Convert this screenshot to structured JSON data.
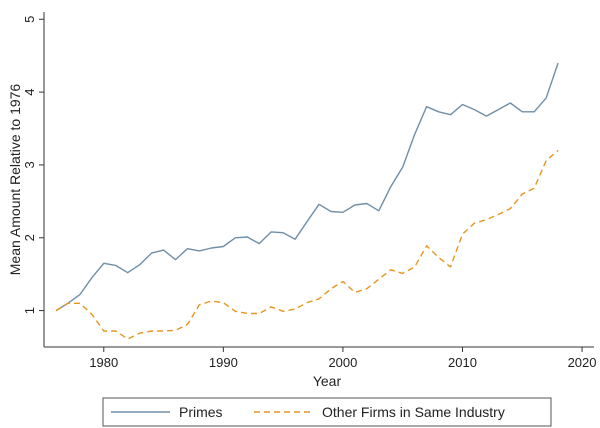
{
  "chart_data": {
    "type": "line",
    "xlabel": "Year",
    "ylabel": "Mean Amount Relative to 1976",
    "xlim": [
      1975,
      2021
    ],
    "ylim": [
      0.5,
      5.1
    ],
    "xticks": [
      1980,
      1990,
      2000,
      2010,
      2020
    ],
    "yticks": [
      1,
      2,
      3,
      4,
      5
    ],
    "grid": false,
    "legend_position": "bottom",
    "series": [
      {
        "name": "Primes",
        "style": "solid",
        "color": "#6f8fa8",
        "x": [
          1976,
          1977,
          1978,
          1979,
          1980,
          1981,
          1982,
          1983,
          1984,
          1985,
          1986,
          1987,
          1988,
          1989,
          1990,
          1991,
          1992,
          1993,
          1994,
          1995,
          1996,
          1997,
          1998,
          1999,
          2000,
          2001,
          2002,
          2003,
          2004,
          2005,
          2006,
          2007,
          2008,
          2009,
          2010,
          2011,
          2012,
          2013,
          2014,
          2015,
          2016,
          2017,
          2018
        ],
        "y": [
          1.0,
          1.1,
          1.22,
          1.45,
          1.65,
          1.62,
          1.52,
          1.63,
          1.79,
          1.83,
          1.7,
          1.85,
          1.82,
          1.86,
          1.88,
          2.0,
          2.01,
          1.92,
          2.08,
          2.07,
          1.98,
          2.22,
          2.46,
          2.36,
          2.35,
          2.45,
          2.47,
          2.37,
          2.7,
          2.97,
          3.42,
          3.8,
          3.73,
          3.69,
          3.83,
          3.76,
          3.67,
          3.76,
          3.85,
          3.73,
          3.73,
          3.92,
          4.4
        ]
      },
      {
        "name": "Other Firms in Same Industry",
        "style": "dashed",
        "color": "#e8951f",
        "x": [
          1976,
          1977,
          1978,
          1979,
          1980,
          1981,
          1982,
          1983,
          1984,
          1985,
          1986,
          1987,
          1988,
          1989,
          1990,
          1991,
          1992,
          1993,
          1994,
          1995,
          1996,
          1997,
          1998,
          1999,
          2000,
          2001,
          2002,
          2003,
          2004,
          2005,
          2006,
          2007,
          2008,
          2009,
          2010,
          2011,
          2012,
          2013,
          2014,
          2015,
          2016,
          2017,
          2018
        ],
        "y": [
          1.0,
          1.1,
          1.1,
          0.95,
          0.72,
          0.72,
          0.61,
          0.69,
          0.72,
          0.72,
          0.73,
          0.81,
          1.08,
          1.13,
          1.11,
          0.99,
          0.96,
          0.96,
          1.05,
          0.99,
          1.02,
          1.11,
          1.16,
          1.3,
          1.4,
          1.25,
          1.3,
          1.43,
          1.56,
          1.51,
          1.6,
          1.89,
          1.73,
          1.6,
          2.05,
          2.2,
          2.25,
          2.32,
          2.4,
          2.6,
          2.68,
          3.06,
          3.2
        ]
      }
    ]
  }
}
